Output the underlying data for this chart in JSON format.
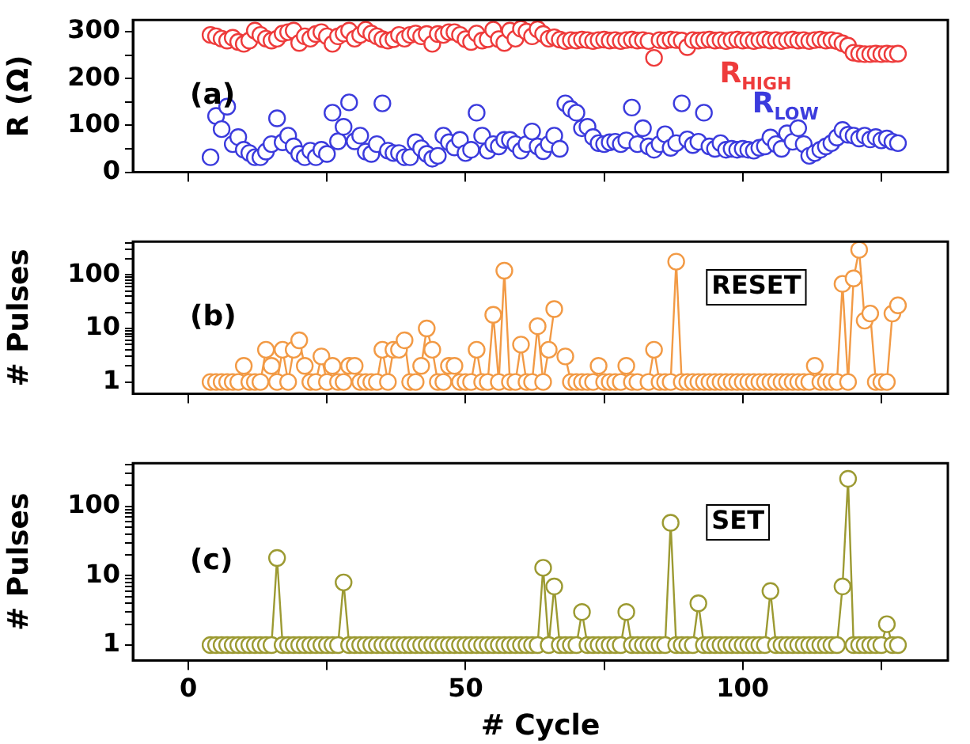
{
  "chart_data": [
    {
      "type": "scatter",
      "ylabel": "R (Ω)",
      "annotations": [
        "(a)"
      ],
      "marker": "circle",
      "legend": false,
      "grid": false,
      "tick_labels": "y",
      "x": [
        4,
        5,
        6,
        7,
        8,
        9,
        10,
        11,
        12,
        13,
        14,
        15,
        16,
        17,
        18,
        19,
        20,
        21,
        22,
        23,
        24,
        25,
        26,
        27,
        28,
        29,
        30,
        31,
        32,
        33,
        34,
        35,
        36,
        37,
        38,
        39,
        40,
        41,
        42,
        43,
        44,
        45,
        46,
        47,
        48,
        49,
        50,
        51,
        52,
        53,
        54,
        55,
        56,
        57,
        58,
        59,
        60,
        61,
        62,
        63,
        64,
        65,
        66,
        67,
        68,
        69,
        70,
        71,
        72,
        73,
        74,
        75,
        76,
        77,
        78,
        79,
        80,
        81,
        82,
        83,
        84,
        85,
        86,
        87,
        88,
        89,
        90,
        91,
        92,
        93,
        94,
        95,
        96,
        97,
        98,
        99,
        100,
        101,
        102,
        103,
        104,
        105,
        106,
        107,
        108,
        109,
        110,
        111,
        112,
        113,
        114,
        115,
        116,
        117,
        118,
        119,
        120,
        121,
        122,
        123,
        124,
        125,
        126,
        127,
        128
      ],
      "xlim": [
        -10,
        137
      ],
      "xticks": [
        0,
        {
          "value": 25,
          "label": null
        },
        50,
        {
          "value": 75,
          "label": null
        },
        100,
        {
          "value": 125,
          "label": null
        }
      ],
      "ylim": [
        0,
        325
      ],
      "yticks": [
        0,
        {
          "value": 50,
          "label": null
        },
        100,
        {
          "value": 150,
          "label": null
        },
        200,
        {
          "value": 250,
          "label": null
        },
        300
      ],
      "series": [
        {
          "name": "R$_{HIGH}$",
          "color": "#ee3b3b",
          "values": [
            293,
            290,
            285,
            281,
            287,
            278,
            274,
            281,
            302,
            293,
            285,
            281,
            285,
            296,
            299,
            302,
            276,
            290,
            285,
            295,
            299,
            290,
            274,
            290,
            296,
            302,
            285,
            293,
            304,
            296,
            290,
            284,
            281,
            284,
            293,
            285,
            293,
            296,
            290,
            295,
            274,
            295,
            293,
            299,
            299,
            293,
            284,
            278,
            296,
            281,
            284,
            304,
            284,
            276,
            302,
            285,
            306,
            300,
            290,
            305,
            295,
            285,
            288,
            283,
            280,
            282,
            281,
            283,
            282,
            280,
            282,
            283,
            281,
            282,
            280,
            282,
            283,
            281,
            282,
            280,
            244,
            282,
            281,
            283,
            282,
            281,
            267,
            282,
            281,
            282,
            283,
            281,
            282,
            280,
            282,
            283,
            281,
            282,
            280,
            282,
            283,
            281,
            282,
            280,
            282,
            283,
            281,
            282,
            280,
            282,
            283,
            281,
            282,
            280,
            275,
            270,
            255,
            253,
            252,
            252,
            253,
            252,
            253,
            252,
            253
          ]
        },
        {
          "name": "R$_{LOW}$",
          "color": "#3b3bdd",
          "values": [
            32,
            120,
            92,
            140,
            60,
            75,
            48,
            41,
            32,
            32,
            44,
            60,
            115,
            64,
            78,
            55,
            39,
            32,
            46,
            32,
            48,
            39,
            127,
            66,
            97,
            149,
            66,
            78,
            44,
            39,
            60,
            147,
            46,
            41,
            41,
            32,
            32,
            64,
            51,
            39,
            29,
            35,
            78,
            64,
            53,
            69,
            41,
            48,
            127,
            78,
            46,
            60,
            55,
            69,
            69,
            60,
            46,
            60,
            87,
            55,
            45,
            60,
            78,
            50,
            147,
            135,
            127,
            94,
            97,
            75,
            62,
            60,
            64,
            65,
            60,
            68,
            138,
            60,
            94,
            55,
            48,
            60,
            81,
            52,
            62,
            147,
            70,
            58,
            65,
            127,
            55,
            50,
            62,
            48,
            50,
            48,
            50,
            48,
            46,
            52,
            55,
            74,
            60,
            50,
            83,
            65,
            94,
            60,
            35,
            41,
            48,
            55,
            62,
            74,
            90,
            80,
            78,
            72,
            78,
            70,
            75,
            68,
            72,
            65,
            62
          ]
        }
      ]
    },
    {
      "type": "line",
      "ylabel": "# Pulses",
      "annotations": [
        "(b)",
        "RESET"
      ],
      "marker": "circle",
      "legend": false,
      "grid": false,
      "tick_labels": "y",
      "log": "y",
      "x": [
        4,
        5,
        6,
        7,
        8,
        9,
        10,
        11,
        12,
        13,
        14,
        15,
        16,
        17,
        18,
        19,
        20,
        21,
        22,
        23,
        24,
        25,
        26,
        27,
        28,
        29,
        30,
        31,
        32,
        33,
        34,
        35,
        36,
        37,
        38,
        39,
        40,
        41,
        42,
        43,
        44,
        45,
        46,
        47,
        48,
        49,
        50,
        51,
        52,
        53,
        54,
        55,
        56,
        57,
        58,
        59,
        60,
        61,
        62,
        63,
        64,
        65,
        66,
        67,
        68,
        69,
        70,
        71,
        72,
        73,
        74,
        75,
        76,
        77,
        78,
        79,
        80,
        81,
        82,
        83,
        84,
        85,
        86,
        87,
        88,
        89,
        90,
        91,
        92,
        93,
        94,
        95,
        96,
        97,
        98,
        99,
        100,
        101,
        102,
        103,
        104,
        105,
        106,
        107,
        108,
        109,
        110,
        111,
        112,
        113,
        114,
        115,
        116,
        117,
        118,
        119,
        120,
        121,
        122,
        123,
        124,
        125,
        126,
        127,
        128
      ],
      "xlim": [
        -10,
        137
      ],
      "xticks": [
        0,
        {
          "value": 25,
          "label": null
        },
        50,
        {
          "value": 75,
          "label": null
        },
        100,
        {
          "value": 125,
          "label": null
        }
      ],
      "ylim": [
        0.6,
        420
      ],
      "yticks": [
        1,
        {
          "value": 2,
          "label": null
        },
        {
          "value": 3,
          "label": null
        },
        {
          "value": 4,
          "label": null
        },
        {
          "value": 5,
          "label": null
        },
        {
          "value": 6,
          "label": null
        },
        {
          "value": 7,
          "label": null
        },
        {
          "value": 8,
          "label": null
        },
        {
          "value": 9,
          "label": null
        },
        10,
        {
          "value": 20,
          "label": null
        },
        {
          "value": 30,
          "label": null
        },
        {
          "value": 40,
          "label": null
        },
        {
          "value": 50,
          "label": null
        },
        {
          "value": 60,
          "label": null
        },
        {
          "value": 70,
          "label": null
        },
        {
          "value": 80,
          "label": null
        },
        {
          "value": 90,
          "label": null
        },
        100,
        {
          "value": 200,
          "label": null
        },
        {
          "value": 300,
          "label": null
        },
        {
          "value": 400,
          "label": null
        }
      ],
      "series": [
        {
          "color": "#f29a45",
          "values": [
            1,
            1,
            1,
            1,
            1,
            1,
            2,
            1,
            1,
            1,
            4,
            2,
            1,
            4,
            1,
            4,
            6,
            2,
            1,
            1,
            3,
            1,
            2,
            1,
            1,
            2,
            2,
            1,
            1,
            1,
            1,
            4,
            1,
            4,
            4,
            6,
            1,
            1,
            2,
            10,
            4,
            1,
            1,
            2,
            2,
            1,
            1,
            1,
            4,
            1,
            1,
            18,
            1,
            120,
            1,
            1,
            5,
            1,
            1,
            11,
            1,
            4,
            23,
            null,
            3,
            1,
            1,
            1,
            1,
            1,
            2,
            1,
            1,
            1,
            1,
            2,
            1,
            1,
            null,
            1,
            4,
            1,
            1,
            1,
            177,
            1,
            1,
            1,
            1,
            1,
            1,
            1,
            1,
            1,
            1,
            1,
            1,
            1,
            1,
            1,
            1,
            1,
            1,
            1,
            1,
            1,
            1,
            1,
            1,
            2,
            1,
            1,
            1,
            1,
            68,
            1,
            86,
            295,
            14,
            19,
            1,
            1,
            1,
            19,
            27
          ]
        }
      ]
    },
    {
      "type": "line",
      "xlabel": "# Cycle",
      "ylabel": "# Pulses",
      "annotations": [
        "(c)",
        "SET"
      ],
      "marker": "circle",
      "legend": false,
      "grid": false,
      "log": "y",
      "x": [
        4,
        5,
        6,
        7,
        8,
        9,
        10,
        11,
        12,
        13,
        14,
        15,
        16,
        17,
        18,
        19,
        20,
        21,
        22,
        23,
        24,
        25,
        26,
        27,
        28,
        29,
        30,
        31,
        32,
        33,
        34,
        35,
        36,
        37,
        38,
        39,
        40,
        41,
        42,
        43,
        44,
        45,
        46,
        47,
        48,
        49,
        50,
        51,
        52,
        53,
        54,
        55,
        56,
        57,
        58,
        59,
        60,
        61,
        62,
        63,
        64,
        65,
        66,
        67,
        68,
        69,
        70,
        71,
        72,
        73,
        74,
        75,
        76,
        77,
        78,
        79,
        80,
        81,
        82,
        83,
        84,
        85,
        86,
        87,
        88,
        89,
        90,
        91,
        92,
        93,
        94,
        95,
        96,
        97,
        98,
        99,
        100,
        101,
        102,
        103,
        104,
        105,
        106,
        107,
        108,
        109,
        110,
        111,
        112,
        113,
        114,
        115,
        116,
        117,
        118,
        119,
        120,
        121,
        122,
        123,
        124,
        125,
        126,
        127,
        128
      ],
      "xlim": [
        -10,
        137
      ],
      "xticks": [
        0,
        {
          "value": 25,
          "label": null
        },
        50,
        {
          "value": 75,
          "label": null
        },
        100,
        {
          "value": 125,
          "label": null
        }
      ],
      "ylim": [
        0.6,
        420
      ],
      "yticks": [
        1,
        {
          "value": 2,
          "label": null
        },
        {
          "value": 3,
          "label": null
        },
        {
          "value": 4,
          "label": null
        },
        {
          "value": 5,
          "label": null
        },
        {
          "value": 6,
          "label": null
        },
        {
          "value": 7,
          "label": null
        },
        {
          "value": 8,
          "label": null
        },
        {
          "value": 9,
          "label": null
        },
        10,
        {
          "value": 20,
          "label": null
        },
        {
          "value": 30,
          "label": null
        },
        {
          "value": 40,
          "label": null
        },
        {
          "value": 50,
          "label": null
        },
        {
          "value": 60,
          "label": null
        },
        {
          "value": 70,
          "label": null
        },
        {
          "value": 80,
          "label": null
        },
        {
          "value": 90,
          "label": null
        },
        100,
        {
          "value": 200,
          "label": null
        },
        {
          "value": 300,
          "label": null
        },
        {
          "value": 400,
          "label": null
        }
      ],
      "series": [
        {
          "color": "#9c9a32",
          "values": [
            1,
            1,
            1,
            1,
            1,
            1,
            1,
            1,
            1,
            1,
            1,
            1,
            18,
            1,
            1,
            1,
            1,
            1,
            1,
            1,
            1,
            1,
            1,
            1,
            8,
            1,
            1,
            1,
            1,
            1,
            1,
            1,
            1,
            1,
            1,
            1,
            1,
            1,
            1,
            1,
            1,
            1,
            1,
            1,
            1,
            1,
            1,
            1,
            1,
            1,
            1,
            1,
            1,
            1,
            1,
            1,
            1,
            1,
            1,
            1,
            13,
            1,
            7,
            1,
            1,
            1,
            1,
            3,
            1,
            1,
            1,
            1,
            1,
            1,
            1,
            3,
            1,
            1,
            1,
            1,
            1,
            1,
            1,
            58,
            1,
            1,
            1,
            1,
            4,
            1,
            1,
            1,
            1,
            1,
            1,
            1,
            1,
            1,
            1,
            1,
            1,
            6,
            1,
            1,
            1,
            1,
            1,
            1,
            1,
            1,
            1,
            1,
            1,
            1,
            7,
            250,
            1,
            1,
            1,
            1,
            1,
            1,
            2,
            1,
            1
          ]
        }
      ]
    }
  ]
}
